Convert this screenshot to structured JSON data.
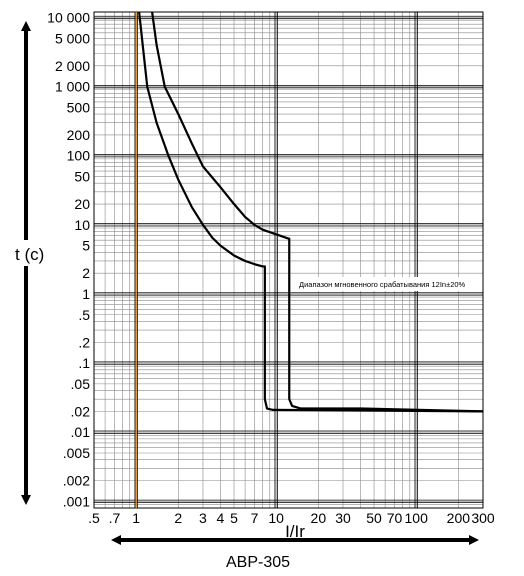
{
  "chart_data": {
    "type": "line",
    "title": "",
    "xlabel": "I/Ir",
    "ylabel": "t (c)",
    "caption": "АВР-305",
    "x_scale": "log",
    "y_scale": "log",
    "xlim": [
      0.5,
      300
    ],
    "ylim": [
      0.0008,
      12000
    ],
    "grid": true,
    "x_ticks": [
      {
        "value": 0.5,
        "label": ".5"
      },
      {
        "value": 0.7,
        "label": ".7"
      },
      {
        "value": 1,
        "label": "1"
      },
      {
        "value": 2,
        "label": "2"
      },
      {
        "value": 3,
        "label": "3"
      },
      {
        "value": 4,
        "label": "4"
      },
      {
        "value": 5,
        "label": "5"
      },
      {
        "value": 7,
        "label": "7"
      },
      {
        "value": 10,
        "label": "10"
      },
      {
        "value": 20,
        "label": "20"
      },
      {
        "value": 30,
        "label": "30"
      },
      {
        "value": 50,
        "label": "50"
      },
      {
        "value": 70,
        "label": "70"
      },
      {
        "value": 100,
        "label": "100"
      },
      {
        "value": 200,
        "label": "200"
      },
      {
        "value": 300,
        "label": "300"
      }
    ],
    "y_ticks": [
      {
        "value": 10000,
        "label": "10 000"
      },
      {
        "value": 5000,
        "label": "5 000"
      },
      {
        "value": 2000,
        "label": "2 000"
      },
      {
        "value": 1000,
        "label": "1 000"
      },
      {
        "value": 500,
        "label": "500"
      },
      {
        "value": 200,
        "label": "200"
      },
      {
        "value": 100,
        "label": "100"
      },
      {
        "value": 50,
        "label": "50"
      },
      {
        "value": 20,
        "label": "20"
      },
      {
        "value": 10,
        "label": "10"
      },
      {
        "value": 5,
        "label": "5"
      },
      {
        "value": 2,
        "label": "2"
      },
      {
        "value": 1,
        "label": "1"
      },
      {
        "value": 0.5,
        "label": ".5"
      },
      {
        "value": 0.2,
        "label": ".2"
      },
      {
        "value": 0.1,
        "label": ".1"
      },
      {
        "value": 0.05,
        "label": ".05"
      },
      {
        "value": 0.02,
        "label": ".02"
      },
      {
        "value": 0.01,
        "label": ".01"
      },
      {
        "value": 0.005,
        "label": ".005"
      },
      {
        "value": 0.002,
        "label": ".002"
      },
      {
        "value": 0.001,
        "label": ".001"
      }
    ],
    "reference_line": {
      "x": 1,
      "color": "#e08a1e"
    },
    "annotation": "Диапазон мгновенного срабатывания 12In±20%",
    "series": [
      {
        "points": [
          [
            1.05,
            12000
          ],
          [
            1.2,
            1000
          ],
          [
            1.4,
            300
          ],
          [
            1.7,
            100
          ],
          [
            2.0,
            45
          ],
          [
            2.5,
            18
          ],
          [
            3.0,
            10
          ],
          [
            3.5,
            6.5
          ],
          [
            4.0,
            5.0
          ],
          [
            5.0,
            3.6
          ],
          [
            6.0,
            3.0
          ],
          [
            7.0,
            2.7
          ],
          [
            8.0,
            2.5
          ],
          [
            8.3,
            2.5
          ],
          [
            8.3,
            0.03
          ],
          [
            8.6,
            0.022
          ],
          [
            9.5,
            0.021
          ],
          [
            300,
            0.02
          ]
        ]
      },
      {
        "points": [
          [
            1.3,
            12000
          ],
          [
            1.4,
            4000
          ],
          [
            1.6,
            1000
          ],
          [
            2.0,
            400
          ],
          [
            2.5,
            150
          ],
          [
            3.0,
            70
          ],
          [
            4.0,
            35
          ],
          [
            5.0,
            20
          ],
          [
            6.0,
            13
          ],
          [
            7.0,
            10
          ],
          [
            8.0,
            8.5
          ],
          [
            10.0,
            7.3
          ],
          [
            12.0,
            6.4
          ],
          [
            12.4,
            6.3
          ],
          [
            12.4,
            0.03
          ],
          [
            13.0,
            0.024
          ],
          [
            15.0,
            0.022
          ],
          [
            40,
            0.022
          ],
          [
            300,
            0.02
          ]
        ]
      }
    ]
  }
}
